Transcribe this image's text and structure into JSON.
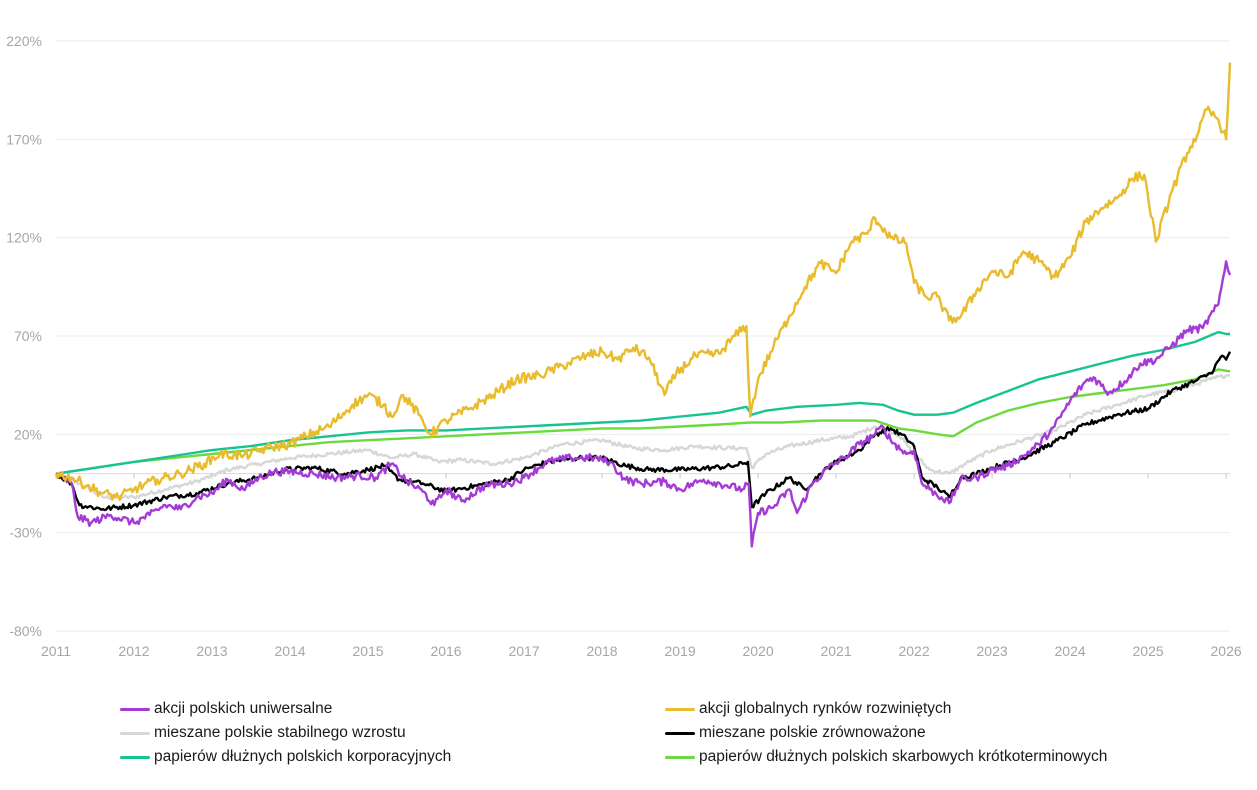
{
  "chart_data": {
    "type": "line",
    "title": "",
    "xlabel": "",
    "ylabel": "",
    "y_unit": "%",
    "x_range": [
      2011.0,
      2026.05
    ],
    "ylim": [
      -80,
      220
    ],
    "x_ticks": [
      "2011",
      "2012",
      "2013",
      "2014",
      "2015",
      "2016",
      "2017",
      "2018",
      "2019",
      "2020",
      "2021",
      "2022",
      "2023",
      "2024",
      "2025",
      "2026"
    ],
    "y_ticks": [
      "220%",
      "170%",
      "120%",
      "70%",
      "20%",
      "-30%",
      "-80%"
    ],
    "y_tick_values": [
      220,
      170,
      120,
      70,
      20,
      -30,
      -80
    ],
    "grid": "horizontal",
    "legend_position": "bottom",
    "series": [
      {
        "name": "akcji polskich uniwersalne",
        "color": "#a43bd6",
        "x": [
          2011.0,
          2011.2,
          2011.28,
          2011.45,
          2011.7,
          2012.0,
          2012.2,
          2012.4,
          2012.6,
          2012.8,
          2013.0,
          2013.2,
          2013.4,
          2013.6,
          2013.8,
          2014.0,
          2014.3,
          2014.6,
          2014.9,
          2015.1,
          2015.3,
          2015.5,
          2015.7,
          2015.85,
          2016.0,
          2016.2,
          2016.5,
          2016.8,
          2017.0,
          2017.3,
          2017.6,
          2017.9,
          2018.1,
          2018.3,
          2018.5,
          2018.8,
          2019.0,
          2019.3,
          2019.6,
          2019.8,
          2019.88,
          2019.92,
          2020.0,
          2020.2,
          2020.4,
          2020.5,
          2020.7,
          2020.9,
          2021.1,
          2021.3,
          2021.5,
          2021.6,
          2021.7,
          2021.9,
          2022.0,
          2022.1,
          2022.2,
          2022.35,
          2022.45,
          2022.6,
          2022.8,
          2023.0,
          2023.2,
          2023.4,
          2023.6,
          2023.8,
          2024.0,
          2024.2,
          2024.3,
          2024.5,
          2024.7,
          2024.9,
          2025.1,
          2025.3,
          2025.5,
          2025.7,
          2025.9,
          2026.0,
          2026.05
        ],
        "y": [
          0,
          -5,
          -22,
          -25,
          -21,
          -25,
          -21,
          -16,
          -18,
          -12,
          -10,
          -3,
          -8,
          -2,
          1,
          1,
          0,
          -2,
          -1,
          -2,
          5,
          -4,
          -9,
          -16,
          -8,
          -14,
          -6,
          -5,
          -2,
          6,
          8,
          8,
          6,
          -3,
          -5,
          -4,
          -8,
          -3,
          -6,
          -8,
          -5,
          -37,
          -20,
          -17,
          -8,
          -20,
          -5,
          3,
          8,
          15,
          20,
          24,
          17,
          10,
          12,
          -5,
          -8,
          -12,
          -15,
          -3,
          -2,
          2,
          4,
          9,
          15,
          24,
          37,
          47,
          49,
          41,
          47,
          56,
          58,
          65,
          73,
          74,
          86,
          108,
          101
        ]
      },
      {
        "name": "akcji globalnych rynków rozwiniętych",
        "color": "#e8bc2c",
        "x": [
          2011.0,
          2011.2,
          2011.4,
          2011.6,
          2011.8,
          2012.0,
          2012.3,
          2012.6,
          2012.9,
          2013.1,
          2013.4,
          2013.7,
          2014.0,
          2014.2,
          2014.5,
          2014.8,
          2015.0,
          2015.2,
          2015.3,
          2015.45,
          2015.65,
          2015.8,
          2016.0,
          2016.3,
          2016.6,
          2016.9,
          2017.2,
          2017.5,
          2017.8,
          2018.0,
          2018.2,
          2018.4,
          2018.6,
          2018.8,
          2018.95,
          2019.2,
          2019.5,
          2019.7,
          2019.85,
          2019.9,
          2020.0,
          2020.2,
          2020.4,
          2020.6,
          2020.8,
          2021.0,
          2021.2,
          2021.4,
          2021.5,
          2021.7,
          2021.9,
          2022.0,
          2022.15,
          2022.3,
          2022.45,
          2022.6,
          2022.8,
          2023.0,
          2023.2,
          2023.4,
          2023.6,
          2023.8,
          2024.0,
          2024.2,
          2024.4,
          2024.6,
          2024.8,
          2024.95,
          2025.1,
          2025.3,
          2025.5,
          2025.65,
          2025.75,
          2025.9,
          2026.0,
          2026.05
        ],
        "y": [
          0,
          -2,
          -6,
          -10,
          -12,
          -8,
          -3,
          0,
          5,
          10,
          9,
          13,
          15,
          19,
          24,
          35,
          40,
          35,
          29,
          40,
          30,
          20,
          27,
          33,
          40,
          48,
          50,
          55,
          60,
          62,
          58,
          64,
          59,
          40,
          51,
          60,
          61,
          70,
          75,
          29,
          48,
          65,
          80,
          95,
          107,
          102,
          118,
          122,
          130,
          120,
          117,
          97,
          90,
          90,
          78,
          80,
          93,
          103,
          100,
          113,
          108,
          100,
          110,
          128,
          135,
          140,
          150,
          152,
          118,
          143,
          163,
          174,
          185,
          180,
          170,
          209
        ]
      },
      {
        "name": "mieszane polskie stabilnego wzrostu",
        "color": "#d7d7d7",
        "x": [
          2011.0,
          2011.3,
          2011.6,
          2012.0,
          2012.4,
          2012.8,
          2013.2,
          2013.6,
          2014.0,
          2014.5,
          2015.0,
          2015.3,
          2015.6,
          2015.9,
          2016.2,
          2016.6,
          2017.0,
          2017.5,
          2018.0,
          2018.4,
          2018.8,
          2019.2,
          2019.6,
          2019.85,
          2019.92,
          2020.1,
          2020.4,
          2020.8,
          2021.2,
          2021.5,
          2021.8,
          2022.0,
          2022.2,
          2022.45,
          2022.7,
          2023.0,
          2023.4,
          2023.8,
          2024.2,
          2024.6,
          2025.0,
          2025.4,
          2025.8,
          2026.0,
          2026.05
        ],
        "y": [
          0,
          -5,
          -12,
          -12,
          -8,
          -4,
          2,
          5,
          8,
          10,
          12,
          8,
          10,
          6,
          7,
          5,
          8,
          15,
          17,
          13,
          12,
          14,
          13,
          13,
          3,
          10,
          14,
          17,
          19,
          24,
          20,
          10,
          2,
          0,
          6,
          12,
          17,
          22,
          30,
          35,
          40,
          43,
          48,
          50,
          50
        ]
      },
      {
        "name": "mieszane polskie zrównoważone",
        "color": "#000000",
        "x": [
          2011.0,
          2011.2,
          2011.3,
          2011.6,
          2012.0,
          2012.4,
          2012.8,
          2013.2,
          2013.6,
          2013.9,
          2014.3,
          2014.7,
          2015.0,
          2015.2,
          2015.4,
          2015.7,
          2016.0,
          2016.4,
          2016.8,
          2017.0,
          2017.3,
          2017.7,
          2018.0,
          2018.3,
          2018.6,
          2019.0,
          2019.4,
          2019.7,
          2019.87,
          2019.92,
          2020.1,
          2020.4,
          2020.6,
          2020.8,
          2021.0,
          2021.3,
          2021.5,
          2021.7,
          2021.9,
          2022.0,
          2022.1,
          2022.3,
          2022.45,
          2022.6,
          2022.8,
          2023.0,
          2023.4,
          2023.8,
          2024.2,
          2024.6,
          2025.0,
          2025.3,
          2025.6,
          2025.8,
          2025.95,
          2026.0,
          2026.05
        ],
        "y": [
          0,
          -5,
          -16,
          -18,
          -16,
          -12,
          -10,
          -5,
          -2,
          2,
          3,
          0,
          2,
          4,
          -3,
          -5,
          -9,
          -6,
          -3,
          2,
          6,
          8,
          8,
          4,
          2,
          2,
          3,
          4,
          6,
          -17,
          -10,
          -2,
          -8,
          0,
          6,
          12,
          20,
          23,
          18,
          14,
          -2,
          -7,
          -12,
          -2,
          0,
          3,
          8,
          16,
          25,
          30,
          33,
          42,
          47,
          51,
          60,
          58,
          62
        ]
      },
      {
        "name": "papierów dłużnych polskich korporacyjnych",
        "color": "#17c293",
        "x": [
          2011.0,
          2011.5,
          2012.0,
          2012.5,
          2013.0,
          2013.5,
          2014.0,
          2014.5,
          2015.0,
          2015.5,
          2016.0,
          2016.5,
          2017.0,
          2017.5,
          2018.0,
          2018.5,
          2019.0,
          2019.5,
          2019.85,
          2019.92,
          2020.1,
          2020.5,
          2021.0,
          2021.3,
          2021.6,
          2021.8,
          2022.0,
          2022.3,
          2022.5,
          2022.8,
          2023.2,
          2023.6,
          2024.0,
          2024.4,
          2024.8,
          2025.2,
          2025.6,
          2025.9,
          2026.0,
          2026.05
        ],
        "y": [
          0,
          3,
          6,
          9,
          12,
          14,
          17,
          19,
          21,
          22,
          22,
          23,
          24,
          25,
          26,
          27,
          29,
          31,
          34,
          30,
          32,
          34,
          35,
          36,
          35,
          32,
          30,
          30,
          31,
          36,
          42,
          48,
          52,
          56,
          60,
          63,
          67,
          72,
          71,
          71
        ]
      },
      {
        "name": "papierów dłużnych polskich skarbowych krótkoterminowych",
        "color": "#6cd93f",
        "x": [
          2011.0,
          2011.5,
          2012.0,
          2012.5,
          2013.0,
          2013.5,
          2014.0,
          2014.5,
          2015.0,
          2015.5,
          2016.0,
          2016.5,
          2017.0,
          2017.5,
          2018.0,
          2018.5,
          2019.0,
          2019.5,
          2019.9,
          2020.3,
          2020.8,
          2021.2,
          2021.5,
          2021.8,
          2022.0,
          2022.3,
          2022.5,
          2022.8,
          2023.2,
          2023.6,
          2024.0,
          2024.4,
          2024.8,
          2025.2,
          2025.6,
          2025.9,
          2026.05
        ],
        "y": [
          0,
          3,
          6,
          8,
          10,
          12,
          14,
          16,
          17,
          18,
          19,
          20,
          21,
          22,
          23,
          23,
          24,
          25,
          26,
          26,
          27,
          27,
          27,
          23,
          22,
          20,
          19,
          26,
          32,
          36,
          39,
          41,
          43,
          45,
          48,
          53,
          52
        ]
      }
    ]
  }
}
